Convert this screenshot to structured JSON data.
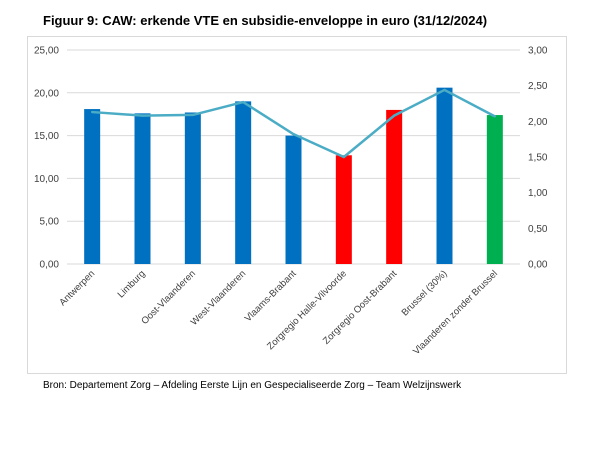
{
  "title": "Figuur 9: CAW: erkende VTE en subsidie-enveloppe in euro (31/12/2024)",
  "source": "Bron: Departement Zorg – Afdeling Eerste Lijn en Gespecialiseerde Zorg – Team Welzijnswerk",
  "chart_data": {
    "type": "bar",
    "title": "Figuur 9: CAW: erkende VTE en subsidie-enveloppe in euro (31/12/2024)",
    "categories": [
      "Antwerpen",
      "Limburg",
      "Oost-Vlaanderen",
      "West-Vlaanderen",
      "Vlaams-Brabant",
      "Zorgregio Halle-Vilvoorde",
      "Zorgregio Oost-Brabant",
      "Brussel (30%)",
      "Vlaanderen zonder Brussel"
    ],
    "series": [
      {
        "type": "bar",
        "axis": "left",
        "values": [
          18.1,
          17.6,
          17.7,
          19.0,
          15.0,
          12.7,
          18.0,
          20.6,
          17.4
        ],
        "colors": [
          "#0070C0",
          "#0070C0",
          "#0070C0",
          "#0070C0",
          "#0070C0",
          "#FF0000",
          "#FF0000",
          "#0070C0",
          "#00B050"
        ]
      },
      {
        "type": "line",
        "axis": "right",
        "values": [
          2.13,
          2.08,
          2.09,
          2.27,
          1.82,
          1.5,
          2.08,
          2.44,
          2.07
        ],
        "color": "#4BACC6"
      }
    ],
    "ylim_left": [
      0,
      25
    ],
    "yticks_left": [
      "0,00",
      "5,00",
      "10,00",
      "15,00",
      "20,00",
      "25,00"
    ],
    "ylim_right": [
      0,
      3
    ],
    "yticks_right": [
      "0,00",
      "0,50",
      "1,00",
      "1,50",
      "2,00",
      "2,50",
      "3,00"
    ],
    "grid": true
  }
}
